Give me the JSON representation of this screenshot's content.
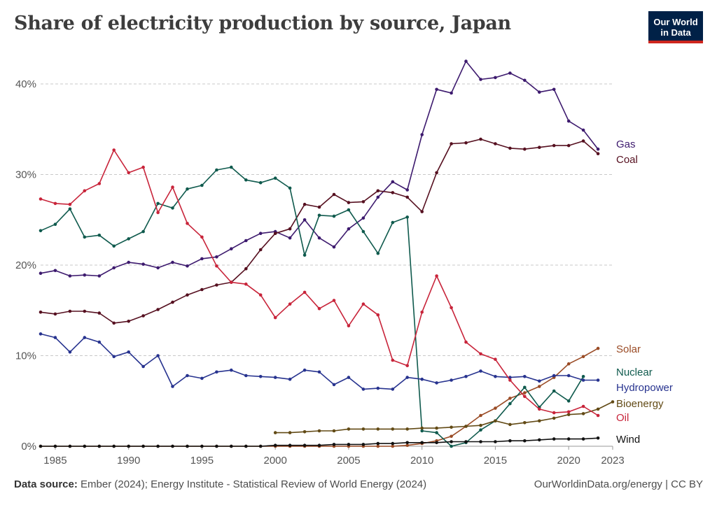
{
  "header": {
    "title": "Share of electricity production by source, Japan",
    "logo_line1": "Our World",
    "logo_line2": "in Data"
  },
  "footer": {
    "source_label": "Data source:",
    "source_text": "Ember (2024); Energy Institute - Statistical Review of World Energy (2024)",
    "url": "OurWorldinData.org/energy | CC BY"
  },
  "chart_data": {
    "type": "line",
    "title": "Share of electricity production by source, Japan",
    "xlabel": "",
    "ylabel": "",
    "xlim": [
      1984,
      2023
    ],
    "ylim": [
      0,
      45
    ],
    "y_ticks": [
      0,
      10,
      20,
      30,
      40
    ],
    "y_tick_labels": [
      "0%",
      "10%",
      "20%",
      "30%",
      "40%"
    ],
    "x_ticks": [
      1985,
      1990,
      1995,
      2000,
      2005,
      2010,
      2015,
      2020,
      2023
    ],
    "x_tick_labels": [
      "1985",
      "1990",
      "1995",
      "2000",
      "2005",
      "2010",
      "2015",
      "2020",
      "2023"
    ],
    "grid": "horizontal dashed",
    "legend": "right-end labels",
    "series": [
      {
        "name": "Gas",
        "color": "#3d1a6e",
        "start": 1984,
        "values": [
          19.1,
          19.4,
          18.8,
          18.9,
          18.8,
          19.7,
          20.3,
          20.1,
          19.7,
          20.3,
          19.9,
          20.7,
          20.9,
          21.8,
          22.7,
          23.5,
          23.7,
          23.0,
          25.0,
          23.0,
          22.0,
          24.0,
          25.2,
          27.5,
          29.2,
          28.3,
          34.4,
          39.4,
          39.0,
          42.5,
          40.5,
          40.7,
          41.2,
          40.4,
          39.1,
          39.4,
          35.9,
          34.9,
          32.8
        ]
      },
      {
        "name": "Coal",
        "color": "#561020",
        "start": 1984,
        "values": [
          14.8,
          14.6,
          14.9,
          14.9,
          14.7,
          13.6,
          13.8,
          14.4,
          15.1,
          15.9,
          16.7,
          17.3,
          17.8,
          18.1,
          19.6,
          21.7,
          23.5,
          24.0,
          26.7,
          26.4,
          27.8,
          26.9,
          27.0,
          28.2,
          28.0,
          27.5,
          25.9,
          30.2,
          33.4,
          33.5,
          33.9,
          33.4,
          32.9,
          32.8,
          33.0,
          33.2,
          33.2,
          33.7,
          32.3
        ]
      },
      {
        "name": "Solar",
        "color": "#9a4b25",
        "start": 1984,
        "values": [
          0,
          0,
          0,
          0,
          0,
          0,
          0,
          0,
          0,
          0,
          0,
          0,
          0,
          0,
          0,
          0,
          0,
          0,
          0,
          0,
          0,
          0,
          0,
          0,
          0,
          0.1,
          0.3,
          0.6,
          1.1,
          2.2,
          3.4,
          4.2,
          5.3,
          5.9,
          6.6,
          7.6,
          9.1,
          9.9,
          10.8
        ]
      },
      {
        "name": "Nuclear",
        "color": "#0f5a4d",
        "start": 1984,
        "values": [
          23.8,
          24.5,
          26.2,
          23.1,
          23.3,
          22.1,
          22.9,
          23.7,
          26.8,
          26.3,
          28.4,
          28.8,
          30.5,
          30.8,
          29.4,
          29.1,
          29.6,
          28.5,
          21.1,
          25.5,
          25.4,
          26.1,
          23.7,
          21.3,
          24.7,
          25.3,
          1.7,
          1.5,
          0,
          0.4,
          1.8,
          2.8,
          4.7,
          6.5,
          4.3,
          6.1,
          5.0,
          7.7
        ]
      },
      {
        "name": "Hydropower",
        "color": "#27338f",
        "start": 1984,
        "values": [
          12.4,
          12.0,
          10.4,
          12.0,
          11.5,
          9.9,
          10.4,
          8.8,
          10.0,
          6.6,
          7.8,
          7.5,
          8.2,
          8.4,
          7.8,
          7.7,
          7.6,
          7.4,
          8.4,
          8.2,
          6.8,
          7.6,
          6.3,
          6.4,
          6.3,
          7.6,
          7.4,
          7.0,
          7.3,
          7.7,
          8.3,
          7.7,
          7.6,
          7.7,
          7.2,
          7.8,
          7.8,
          7.3,
          7.3
        ]
      },
      {
        "name": "Bioenergy",
        "color": "#624a15",
        "start": 2000,
        "values": [
          1.5,
          1.5,
          1.6,
          1.7,
          1.7,
          1.9,
          1.9,
          1.9,
          1.9,
          1.9,
          2.0,
          2.0,
          2.1,
          2.2,
          2.3,
          2.8,
          2.4,
          2.6,
          2.8,
          3.1,
          3.5,
          3.6,
          4.1,
          4.9
        ]
      },
      {
        "name": "Oil",
        "color": "#c8243a",
        "start": 1984,
        "values": [
          27.3,
          26.8,
          26.7,
          28.2,
          29.0,
          32.7,
          30.2,
          30.8,
          25.8,
          28.6,
          24.6,
          23.1,
          19.9,
          18.1,
          17.9,
          16.7,
          14.2,
          15.7,
          17.0,
          15.2,
          16.1,
          13.3,
          15.7,
          14.5,
          9.5,
          8.9,
          14.8,
          18.8,
          15.3,
          11.5,
          10.2,
          9.6,
          7.3,
          5.5,
          4.1,
          3.7,
          3.8,
          4.4,
          3.4
        ]
      },
      {
        "name": "Wind",
        "color": "#111111",
        "start": 1984,
        "values": [
          0,
          0,
          0,
          0,
          0,
          0,
          0,
          0,
          0,
          0,
          0,
          0,
          0,
          0,
          0,
          0,
          0.1,
          0.1,
          0.1,
          0.1,
          0.2,
          0.2,
          0.2,
          0.3,
          0.3,
          0.4,
          0.4,
          0.4,
          0.5,
          0.5,
          0.5,
          0.5,
          0.6,
          0.6,
          0.7,
          0.8,
          0.8,
          0.8,
          0.9
        ]
      }
    ]
  }
}
